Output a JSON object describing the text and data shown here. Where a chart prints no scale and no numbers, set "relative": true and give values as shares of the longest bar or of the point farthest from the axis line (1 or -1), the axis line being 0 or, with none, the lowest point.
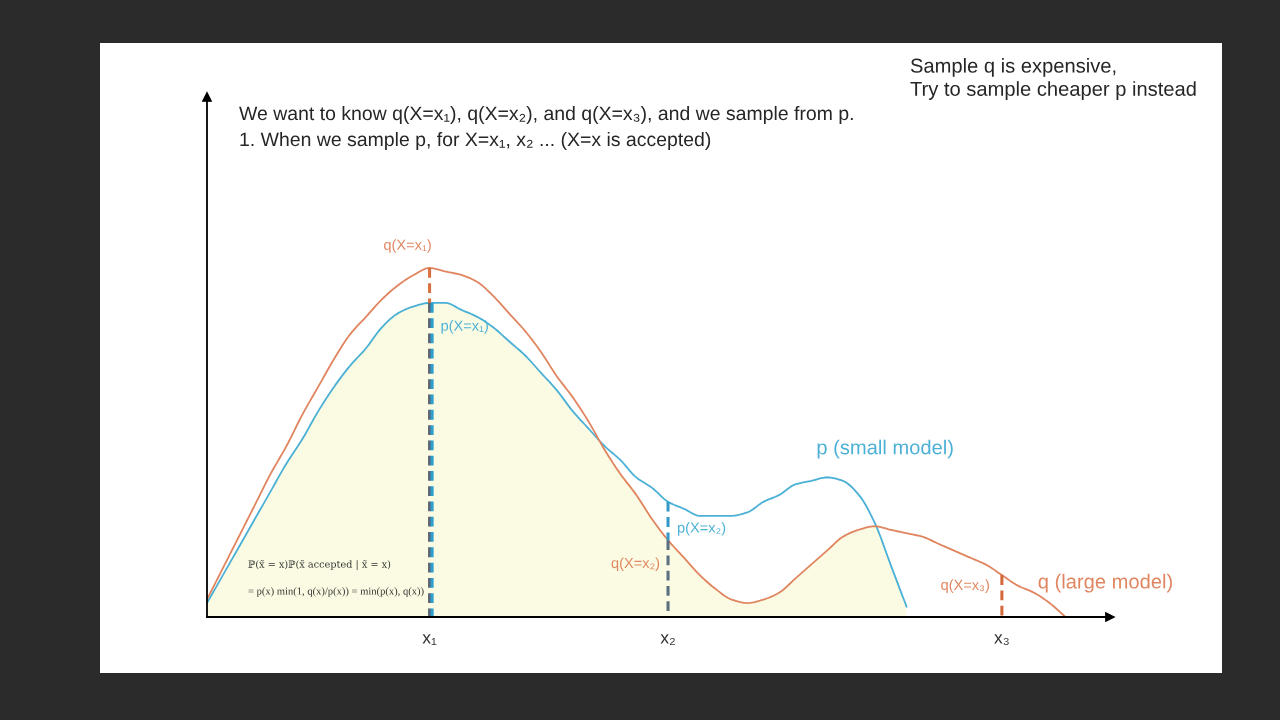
{
  "chart_data": {
    "type": "line",
    "relative": true,
    "categories": [
      null,
      null,
      null,
      null,
      null,
      null,
      null,
      null,
      null,
      null,
      null,
      null,
      null,
      null,
      "x₁",
      null,
      null,
      null,
      null,
      null,
      null,
      null,
      null,
      null,
      null,
      null,
      null,
      null,
      null,
      "x₂",
      null,
      null,
      null,
      null,
      null,
      null,
      null,
      null,
      null,
      null,
      null,
      null,
      null,
      null,
      null,
      null,
      null,
      null,
      null,
      null,
      "x₃",
      null,
      null,
      null,
      null,
      null,
      null
    ],
    "series": [
      {
        "type": "area",
        "color": "#fbfbe3",
        "values": [
          0.04,
          0.12,
          0.2,
          0.28,
          0.36,
          0.44,
          0.51,
          0.59,
          0.66,
          0.72,
          0.77,
          0.83,
          0.87,
          0.89,
          0.9,
          0.9,
          0.88,
          0.86,
          0.83,
          0.79,
          0.75,
          0.7,
          0.65,
          0.59,
          0.54,
          0.48,
          0.41,
          0.35,
          0.28,
          0.22,
          0.17,
          0.12,
          0.08,
          0.05,
          0.04,
          0.05,
          0.07,
          0.11,
          0.15,
          0.19,
          0.23,
          0.25,
          0.26,
          0.15,
          0.03,
          null,
          null,
          null,
          null,
          null,
          null,
          null,
          null,
          null,
          null,
          null,
          null
        ]
      },
      {
        "name": "p (small model)",
        "color": "#4bb0d6",
        "values": [
          0.04,
          0.12,
          0.2,
          0.28,
          0.36,
          0.44,
          0.51,
          0.59,
          0.66,
          0.72,
          0.77,
          0.83,
          0.87,
          0.89,
          0.9,
          0.9,
          0.88,
          0.86,
          0.83,
          0.79,
          0.75,
          0.7,
          0.65,
          0.59,
          0.54,
          0.49,
          0.45,
          0.4,
          0.37,
          0.33,
          0.31,
          0.29,
          0.29,
          0.29,
          0.3,
          0.33,
          0.35,
          0.38,
          0.39,
          0.4,
          0.39,
          0.35,
          0.27,
          0.15,
          0.03,
          null,
          null,
          null,
          null,
          null,
          null,
          null,
          null,
          null,
          null,
          null,
          null
        ]
      },
      {
        "name": "q (large model)",
        "color": "#e0855f",
        "values": [
          0.05,
          0.14,
          0.23,
          0.32,
          0.41,
          0.49,
          0.58,
          0.66,
          0.74,
          0.81,
          0.86,
          0.91,
          0.95,
          0.98,
          1.0,
          0.99,
          0.98,
          0.96,
          0.92,
          0.87,
          0.82,
          0.76,
          0.69,
          0.63,
          0.56,
          0.48,
          0.41,
          0.35,
          0.28,
          0.22,
          0.17,
          0.12,
          0.08,
          0.05,
          0.04,
          0.05,
          0.07,
          0.11,
          0.15,
          0.19,
          0.23,
          0.25,
          0.26,
          0.25,
          0.24,
          0.23,
          0.21,
          0.19,
          0.17,
          0.15,
          0.12,
          0.09,
          0.07,
          0.04,
          0,
          null,
          null
        ]
      },
      {
        "type": "line",
        "line_style": "dashed",
        "color": "#d8703f",
        "x": [
          "x₁",
          "x₁"
        ],
        "values": [
          1.0,
          0.9
        ]
      },
      {
        "type": "line",
        "line_style": "dashed",
        "color": "#5b6775",
        "x": [
          "x₁",
          "x₁"
        ],
        "values": [
          0.9,
          0
        ]
      },
      {
        "type": "line",
        "line_style": "dashed",
        "color": "#2f9fcf",
        "x": [
          "x₁",
          "x₁"
        ],
        "values": [
          0.9,
          0
        ]
      },
      {
        "type": "line",
        "line_style": "dashed",
        "color": "#3399c8",
        "x": [
          "x₂",
          "x₂"
        ],
        "values": [
          0.33,
          0.22
        ]
      },
      {
        "type": "line",
        "line_style": "dashed",
        "color": "#5a7080",
        "x": [
          "x₂",
          "x₂"
        ],
        "values": [
          0.22,
          0
        ]
      },
      {
        "type": "line",
        "line_style": "dashed",
        "color": "#d26a3c",
        "x": [
          "x₃",
          "x₃"
        ],
        "values": [
          0.12,
          0
        ]
      }
    ],
    "annotations": [
      "Sample q is expensive,\nTry to sample cheaper p instead",
      "We want to know q(X=x₁), q(X=x₂), and q(X=x₃), and we sample from p.",
      "1. When we sample p, for X=x₁, x₂ ... (X=x is accepted)",
      "ℙ(x̃ = x)ℙ(x̃ accepted | x̃ = x)",
      "= p(x) min(1, q(x)/p(x)) = min(p(x), q(x))",
      {
        "text": "q(X=x₁)",
        "x": "x₁",
        "y": 1.0
      },
      {
        "text": "p(X=x₁)",
        "x": "x₁",
        "y": 0.9
      },
      {
        "text": "p(X=x₂)",
        "x": "x₂",
        "y": 0.33
      },
      {
        "text": "q(X=x₂)",
        "x": "x₂",
        "y": 0.22
      },
      {
        "text": "q(X=x₃)",
        "x": "x₃",
        "y": 0.12
      }
    ]
  }
}
